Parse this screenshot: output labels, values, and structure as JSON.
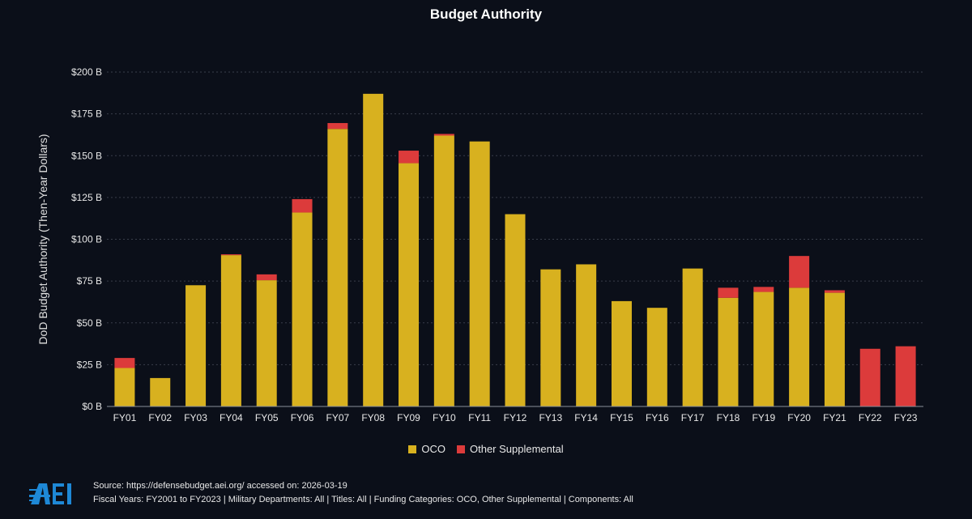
{
  "colors": {
    "background": "#0b0f19",
    "oco": "#d8b11f",
    "other_supplemental": "#dc3b3b",
    "grid": "#3a3f4a",
    "logo": "#1e88d6"
  },
  "footer": {
    "source": "Source: https://defensebudget.aei.org/ accessed on: 2026-03-19",
    "filters": "Fiscal Years: FY2001 to FY2023 | Military Departments: All | Titles: All | Funding Categories: OCO, Other Supplemental | Components: All"
  },
  "logo": {
    "icon": "aei-logo-icon",
    "text": "AEI"
  },
  "chart_data": {
    "type": "bar",
    "stacked": true,
    "title": "Budget Authority",
    "ylabel": "DoD Budget Authority (Then-Year Dollars)",
    "xlabel": "",
    "ylim": [
      0,
      200
    ],
    "yticks": [
      0,
      25,
      50,
      75,
      100,
      125,
      150,
      175,
      200
    ],
    "ytick_labels": [
      "$0 B",
      "$25 B",
      "$50 B",
      "$75 B",
      "$100 B",
      "$125 B",
      "$150 B",
      "$175 B",
      "$200 B"
    ],
    "grid": true,
    "legend_position": "bottom",
    "categories": [
      "FY01",
      "FY02",
      "FY03",
      "FY04",
      "FY05",
      "FY06",
      "FY07",
      "FY08",
      "FY09",
      "FY10",
      "FY11",
      "FY12",
      "FY13",
      "FY14",
      "FY15",
      "FY16",
      "FY17",
      "FY18",
      "FY19",
      "FY20",
      "FY21",
      "FY22",
      "FY23"
    ],
    "series": [
      {
        "name": "OCO",
        "color": "#d8b11f",
        "values": [
          23,
          17,
          72.5,
          90.5,
          75.5,
          116,
          166,
          187,
          145.5,
          162,
          158.5,
          115,
          82,
          85,
          63,
          59,
          82.5,
          65,
          68.5,
          71,
          68,
          0,
          0
        ]
      },
      {
        "name": "Other Supplemental",
        "color": "#dc3b3b",
        "values": [
          6,
          0,
          0,
          0.5,
          3.5,
          8,
          3.5,
          0,
          7.5,
          1,
          0,
          0,
          0,
          0,
          0,
          0,
          0,
          6,
          3,
          19,
          1.5,
          34.5,
          36
        ]
      }
    ]
  }
}
